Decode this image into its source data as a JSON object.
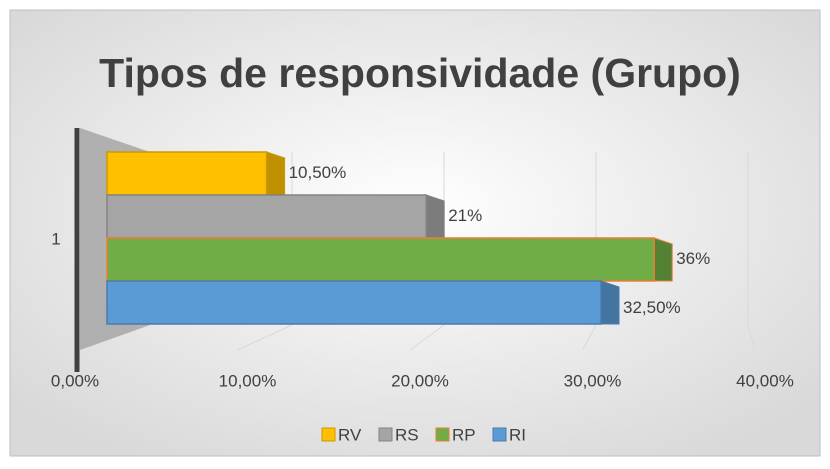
{
  "chart_data": {
    "type": "bar3d_horizontal",
    "title": "Tipos de responsividade (Grupo)",
    "categories": [
      "1"
    ],
    "series": [
      {
        "name": "RV",
        "color": "#ffc000",
        "values": [
          10.5
        ],
        "value_labels": [
          "10,50%"
        ]
      },
      {
        "name": "RS",
        "color": "#a5a5a5",
        "values": [
          21
        ],
        "value_labels": [
          "21%"
        ]
      },
      {
        "name": "RP",
        "color": "#70ad47",
        "values": [
          36
        ],
        "value_labels": [
          "36%"
        ]
      },
      {
        "name": "RI",
        "color": "#5b9bd5",
        "values": [
          32.5
        ],
        "value_labels": [
          "32,50%"
        ]
      }
    ],
    "xlim": [
      0,
      40
    ],
    "xticks": [
      {
        "value": 0,
        "label": "0,00%"
      },
      {
        "value": 10,
        "label": "10,00%"
      },
      {
        "value": 20,
        "label": "20,00%"
      },
      {
        "value": 30,
        "label": "30,00%"
      },
      {
        "value": 40,
        "label": "40,00%"
      }
    ],
    "grid": true,
    "legend": "bottom"
  }
}
